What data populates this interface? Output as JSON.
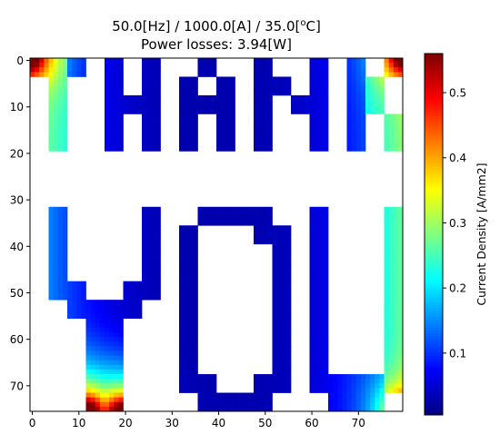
{
  "chart_data": {
    "type": "heatmap",
    "title_line1_parts": [
      "50.0[Hz] / 1000.0[A] / 35.0[",
      "o",
      "C]"
    ],
    "title_line2": "Power losses: 3.94[W]",
    "x_ticks": [
      0,
      10,
      20,
      30,
      40,
      50,
      60,
      70
    ],
    "y_ticks": [
      0,
      10,
      20,
      30,
      40,
      50,
      60,
      70
    ],
    "x_tick_labels": [
      "0",
      "10",
      "20",
      "30",
      "40",
      "50",
      "60",
      "70"
    ],
    "y_tick_labels": [
      "0",
      "10",
      "20",
      "30",
      "40",
      "50",
      "60",
      "70"
    ],
    "xlim": [
      -0.5,
      79.5
    ],
    "ylim": [
      75.5,
      -0.5
    ],
    "grid": false,
    "colormap": "jet",
    "colorbar": {
      "label": "Current Density [A/mm2]",
      "range": [
        0.005,
        0.56
      ],
      "ticks": [
        0.1,
        0.2,
        0.3,
        0.4,
        0.5
      ],
      "tick_labels": [
        "0.1",
        "0.2",
        "0.3",
        "0.4",
        "0.5"
      ]
    },
    "regions": [
      {
        "name": "T-top-bar",
        "x": [
          0,
          11
        ],
        "y": [
          0,
          3
        ],
        "value_range": [
          0.18,
          0.56
        ]
      },
      {
        "name": "T-stem",
        "x": [
          4,
          7
        ],
        "y": [
          4,
          19
        ],
        "value_range": [
          0.15,
          0.28
        ]
      },
      {
        "name": "H-left",
        "x": [
          16,
          19
        ],
        "y": [
          0,
          19
        ],
        "value_range": [
          0.02,
          0.1
        ]
      },
      {
        "name": "H-right",
        "x": [
          24,
          27
        ],
        "y": [
          0,
          19
        ],
        "value_range": [
          0.02,
          0.1
        ]
      },
      {
        "name": "A-left",
        "x": [
          32,
          35
        ],
        "y": [
          0,
          19
        ],
        "value_range": [
          0.01,
          0.06
        ]
      },
      {
        "name": "A-right",
        "x": [
          40,
          43
        ],
        "y": [
          0,
          19
        ],
        "value_range": [
          0.01,
          0.06
        ]
      },
      {
        "name": "N-left",
        "x": [
          48,
          51
        ],
        "y": [
          0,
          19
        ],
        "value_range": [
          0.01,
          0.05
        ]
      },
      {
        "name": "N-right",
        "x": [
          60,
          63
        ],
        "y": [
          0,
          19
        ],
        "value_range": [
          0.02,
          0.1
        ]
      },
      {
        "name": "K-stem",
        "x": [
          68,
          71
        ],
        "y": [
          0,
          19
        ],
        "value_range": [
          0.05,
          0.2
        ]
      },
      {
        "name": "K-arms",
        "x": [
          72,
          79
        ],
        "y": [
          0,
          19
        ],
        "value_range": [
          0.1,
          0.56
        ]
      },
      {
        "name": "Y-arms",
        "x": [
          4,
          27
        ],
        "y": [
          32,
          51
        ],
        "value_range": [
          0.05,
          0.25
        ]
      },
      {
        "name": "Y-stem",
        "x": [
          12,
          19
        ],
        "y": [
          52,
          75
        ],
        "value_range": [
          0.05,
          0.56
        ]
      },
      {
        "name": "O",
        "x": [
          32,
          55
        ],
        "y": [
          32,
          75
        ],
        "value_range": [
          0.02,
          0.25
        ]
      },
      {
        "name": "U",
        "x": [
          60,
          79
        ],
        "y": [
          32,
          75
        ],
        "value_range": [
          0.02,
          0.3
        ]
      }
    ]
  }
}
